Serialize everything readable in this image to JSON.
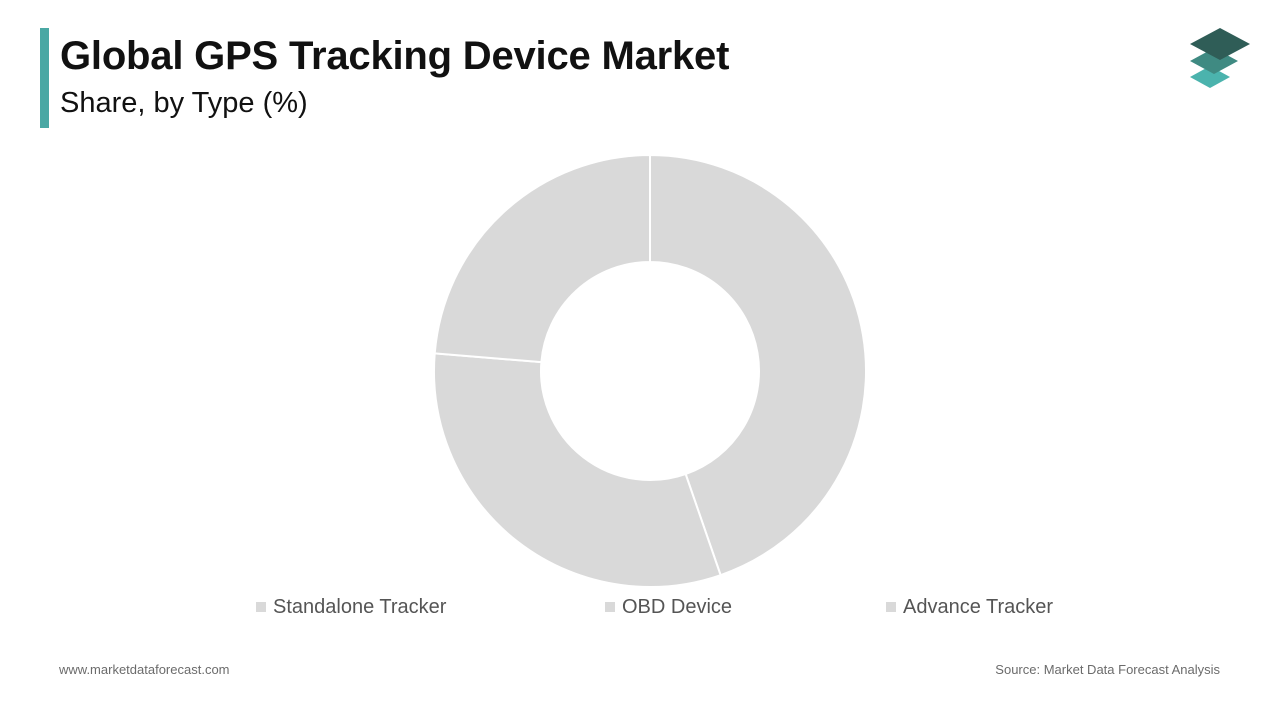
{
  "header": {
    "title": "Global GPS Tracking Device Market",
    "subtitle": "Share, by Type (%)",
    "accent_color": "#4aa8a4"
  },
  "logo": {
    "icon": "stacked-layers-icon",
    "colors": [
      "#2f5d57",
      "#3f8a82",
      "#4bb3ad"
    ]
  },
  "chart_data": {
    "type": "pie",
    "variant": "donut",
    "title": "Global GPS Tracking Device Market",
    "subtitle": "Share, by Type (%)",
    "categories": [
      "Standalone Tracker",
      "OBD Device",
      "Advance Tracker"
    ],
    "values": [
      44.7,
      31.6,
      23.7
    ],
    "slice_color": "#d9d9d9",
    "separator_color": "#ffffff",
    "legend_position": "bottom"
  },
  "footer": {
    "website": "www.marketdataforecast.com",
    "source": "Source: Market Data Forecast Analysis"
  }
}
